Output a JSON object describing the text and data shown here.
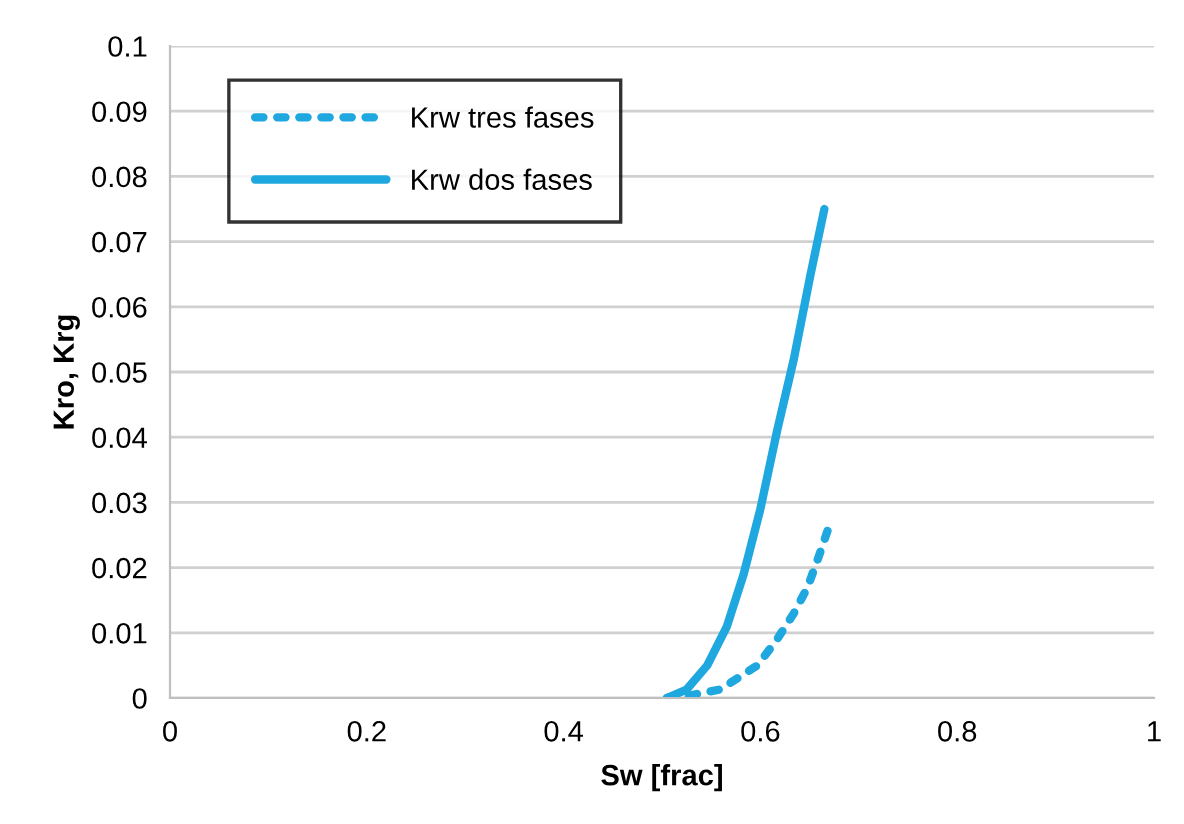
{
  "chart_data": {
    "type": "line",
    "xlabel": "Sw [frac]",
    "ylabel": "Kro, Krg",
    "xlim": [
      0,
      1
    ],
    "xticks": [
      0,
      0.2,
      0.4,
      0.6,
      0.8,
      1
    ],
    "ylim": [
      0,
      0.1
    ],
    "yticks": [
      0,
      0.01,
      0.02,
      0.03,
      0.04,
      0.05,
      0.06,
      0.07,
      0.08,
      0.09,
      0.1
    ],
    "grid": "y",
    "legend": "top left",
    "marker": "none",
    "series": [
      {
        "name": "Krw tres fases",
        "color": "#1fa8e0",
        "line_style": "dotted",
        "x": [
          0.505,
          0.525,
          0.559,
          0.597,
          0.617,
          0.634,
          0.648,
          0.66,
          0.669
        ],
        "values": [
          0,
          0.0003,
          0.0013,
          0.005,
          0.009,
          0.013,
          0.017,
          0.022,
          0.026
        ]
      },
      {
        "name": "Krw dos fases",
        "color": "#1fa8e0",
        "line_style": "solid",
        "x": [
          0.505,
          0.525,
          0.546,
          0.566,
          0.583,
          0.6,
          0.617,
          0.634,
          0.651,
          0.665
        ],
        "values": [
          0,
          0.0013,
          0.005,
          0.011,
          0.019,
          0.029,
          0.041,
          0.052,
          0.065,
          0.075
        ]
      }
    ]
  }
}
